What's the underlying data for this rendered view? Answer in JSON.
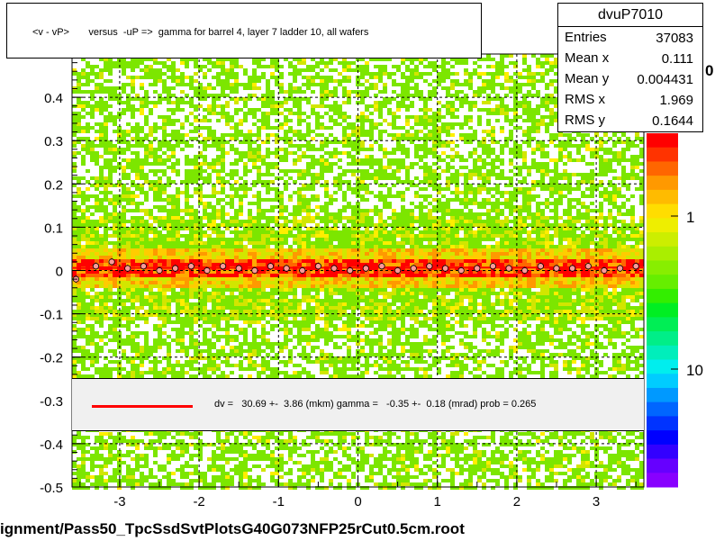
{
  "title": "<v - vP>       versus  -uP =>  gamma for barrel 4, layer 7 ladder 10, all wafers",
  "stats": {
    "name": "dvuP7010",
    "rows": [
      {
        "label": "Entries",
        "value": "37083"
      },
      {
        "label": "Mean x",
        "value": "0.111"
      },
      {
        "label": "Mean y",
        "value": "0.004431"
      },
      {
        "label": "RMS x",
        "value": "1.969"
      },
      {
        "label": "RMS y",
        "value": "0.1644"
      }
    ]
  },
  "fit": {
    "text": "dv =   30.69 +-  3.86 (mkm) gamma =   -0.35 +-  0.18 (mrad) prob = 0.265",
    "line_color": "#ff0000"
  },
  "footer": "ignment/Pass50_TpcSsdSvtPlotsG40G073NFP25rCut0.5cm.root",
  "colors": {
    "background": "#ffffff",
    "low_density": "#7ce600",
    "mid_density": "#d2e600",
    "high_density": "#ff0000",
    "profile_marker_fill": "#ff9999",
    "fit_line": "#ff0000"
  },
  "chart_data": {
    "type": "heatmap",
    "xlim": [
      -3.6,
      3.6
    ],
    "ylim": [
      -0.5,
      0.5
    ],
    "x_ticks": [
      -3,
      -2,
      -1,
      0,
      1,
      2,
      3
    ],
    "y_ticks": [
      -0.5,
      -0.4,
      -0.3,
      -0.2,
      -0.1,
      0,
      0.1,
      0.2,
      0.3,
      0.4
    ],
    "y_tick_labels": [
      "-0.5",
      "-0.4",
      "-0.3",
      "-0.2",
      "-0.1",
      "0",
      "0.1",
      "0.2",
      "0.3",
      "0.4"
    ],
    "x_tick_labels": [
      "-3",
      "-2",
      "-1",
      "0",
      "1",
      "2",
      "3"
    ],
    "grid": true,
    "colorbar": {
      "scale": "log",
      "tick_labels": [
        "1",
        "10"
      ],
      "tick_values": [
        1,
        10
      ],
      "top_label": "0"
    },
    "profile": {
      "x": [
        -3.55,
        -3.3,
        -3.1,
        -2.9,
        -2.7,
        -2.5,
        -2.3,
        -2.1,
        -1.9,
        -1.7,
        -1.5,
        -1.3,
        -1.1,
        -0.9,
        -0.7,
        -0.5,
        -0.3,
        -0.1,
        0.1,
        0.3,
        0.5,
        0.7,
        0.9,
        1.1,
        1.3,
        1.5,
        1.7,
        1.9,
        2.1,
        2.3,
        2.5,
        2.7,
        2.9,
        3.1,
        3.3,
        3.5
      ],
      "y": [
        -0.02,
        0.01,
        0.02,
        0.005,
        0.01,
        0.0,
        0.005,
        0.01,
        0.0,
        0.01,
        0.005,
        0.0,
        0.01,
        0.005,
        0.0,
        0.01,
        0.005,
        0.0,
        0.005,
        0.01,
        0.0,
        0.005,
        0.01,
        0.005,
        0.0,
        0.005,
        0.01,
        0.005,
        0.0,
        0.01,
        0.005,
        0.005,
        0.01,
        0.0,
        0.005,
        0.01
      ]
    },
    "fit_line": {
      "y_at_xmin": 0.006,
      "y_at_xmax": 0.007
    }
  }
}
